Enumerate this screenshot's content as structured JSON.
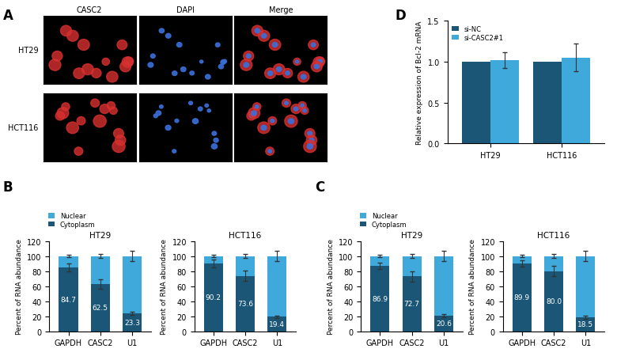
{
  "image_panel": {
    "panel_label": "A",
    "columns": [
      "CASC2",
      "DAPI",
      "Merge"
    ],
    "rows": [
      "HT29",
      "HCT116"
    ]
  },
  "chart_data": [
    {
      "type": "bar",
      "stacked": true,
      "panel_label": "B",
      "title": "HT29",
      "y_label": "Percent of RNA abundance",
      "categories": [
        "GAPDH",
        "CASC2",
        "U1"
      ],
      "ylim": [
        0,
        120
      ],
      "yticks": [
        0,
        20,
        40,
        60,
        80,
        100,
        120
      ],
      "legend": "upper left",
      "series": [
        {
          "name": "Cytoplasm",
          "color": "#1b5676",
          "values": [
            84.7,
            62.5,
            23.3
          ],
          "errors": [
            5,
            6,
            2
          ],
          "data_labels": true
        },
        {
          "name": "Nuclear",
          "color": "#3fa9dc",
          "values": [
            15.3,
            37.5,
            76.7
          ],
          "errors": [
            2,
            3,
            7
          ]
        }
      ]
    },
    {
      "type": "bar",
      "stacked": true,
      "title": "HCT116",
      "y_label": "Percent of RNA abundance",
      "categories": [
        "GAPDH",
        "CASC2",
        "U1"
      ],
      "ylim": [
        0,
        120
      ],
      "yticks": [
        0,
        20,
        40,
        60,
        80,
        100,
        120
      ],
      "series": [
        {
          "name": "Cytoplasm",
          "color": "#1b5676",
          "values": [
            90.2,
            73.6,
            19.4
          ],
          "errors": [
            5,
            7,
            1.5
          ],
          "data_labels": true
        },
        {
          "name": "Nuclear",
          "color": "#3fa9dc",
          "values": [
            9.8,
            26.4,
            80.6
          ],
          "errors": [
            2,
            3,
            7
          ]
        }
      ]
    },
    {
      "type": "bar",
      "stacked": true,
      "panel_label": "C",
      "title": "HT29",
      "y_label": "Percent of RNA abundance",
      "categories": [
        "GAPDH",
        "CASC2",
        "U1"
      ],
      "ylim": [
        0,
        120
      ],
      "yticks": [
        0,
        20,
        40,
        60,
        80,
        100,
        120
      ],
      "legend": "upper left",
      "series": [
        {
          "name": "Cytoplasm",
          "color": "#1b5676",
          "values": [
            86.9,
            72.7,
            20.6
          ],
          "errors": [
            4,
            7,
            2
          ],
          "data_labels": true
        },
        {
          "name": "Nuclear",
          "color": "#3fa9dc",
          "values": [
            13.1,
            27.3,
            79.4
          ],
          "errors": [
            2,
            3,
            7
          ]
        }
      ]
    },
    {
      "type": "bar",
      "stacked": true,
      "title": "HCT116",
      "y_label": "Percent of RNA abundance",
      "categories": [
        "GAPDH",
        "CASC2",
        "U1"
      ],
      "ylim": [
        0,
        120
      ],
      "yticks": [
        0,
        20,
        40,
        60,
        80,
        100,
        120
      ],
      "series": [
        {
          "name": "Cytoplasm",
          "color": "#1b5676",
          "values": [
            89.9,
            80.0,
            18.5
          ],
          "errors": [
            4,
            7,
            2
          ],
          "data_labels": true
        },
        {
          "name": "Nuclear",
          "color": "#3fa9dc",
          "values": [
            10.1,
            20.0,
            81.5
          ],
          "errors": [
            2,
            3,
            7
          ]
        }
      ]
    },
    {
      "type": "bar",
      "stacked": false,
      "panel_label": "D",
      "y_label": "Relative expression of Bcl-2 mRNA",
      "categories": [
        "HT29",
        "HCT116"
      ],
      "ylim": [
        0,
        1.5
      ],
      "yticks": [
        0.0,
        0.5,
        1.0,
        1.5
      ],
      "legend": "upper left",
      "series": [
        {
          "name": "si-NC",
          "color": "#1b5676",
          "values": [
            1.0,
            1.0
          ]
        },
        {
          "name": "si-CASC2#1",
          "color": "#3fa9dc",
          "values": [
            1.02,
            1.05
          ],
          "errors": [
            0.1,
            0.17
          ]
        }
      ]
    }
  ]
}
